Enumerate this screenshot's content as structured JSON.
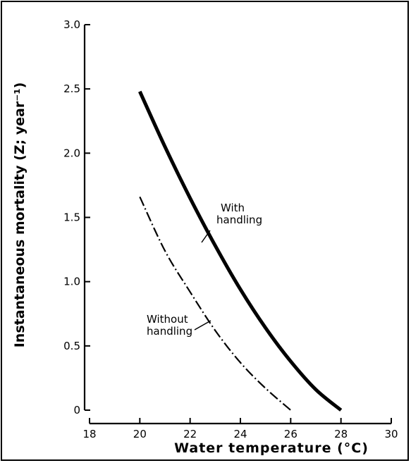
{
  "chart_data": {
    "type": "line",
    "title": "",
    "xlabel": "Water temperature (°C)",
    "ylabel": "Instantaneous mortality (Z; year⁻¹)",
    "xlim": [
      18,
      30
    ],
    "ylim": [
      0,
      3.0
    ],
    "x_ticks": [
      "18",
      "20",
      "22",
      "24",
      "26",
      "28",
      "30"
    ],
    "y_ticks": [
      "0",
      "0.5",
      "1.0",
      "1.5",
      "2.0",
      "2.5",
      "3.0"
    ],
    "grid": false,
    "legend": "none",
    "series": [
      {
        "name": "With handling",
        "style": "solid-thick",
        "color": "#000000",
        "x": [
          20,
          21,
          22,
          23,
          24,
          25,
          26,
          27,
          28
        ],
        "y": [
          2.48,
          2.05,
          1.65,
          1.28,
          0.94,
          0.64,
          0.38,
          0.16,
          0.0
        ]
      },
      {
        "name": "Without handling",
        "style": "dash-dot",
        "color": "#000000",
        "x": [
          20,
          21,
          22,
          23,
          24,
          25,
          26
        ],
        "y": [
          1.66,
          1.24,
          0.92,
          0.62,
          0.37,
          0.17,
          0.0
        ]
      }
    ],
    "annotations": [
      {
        "lines": [
          "With",
          "handling"
        ],
        "series": "With handling"
      },
      {
        "lines": [
          "Without",
          "handling"
        ],
        "series": "Without handling"
      }
    ]
  }
}
